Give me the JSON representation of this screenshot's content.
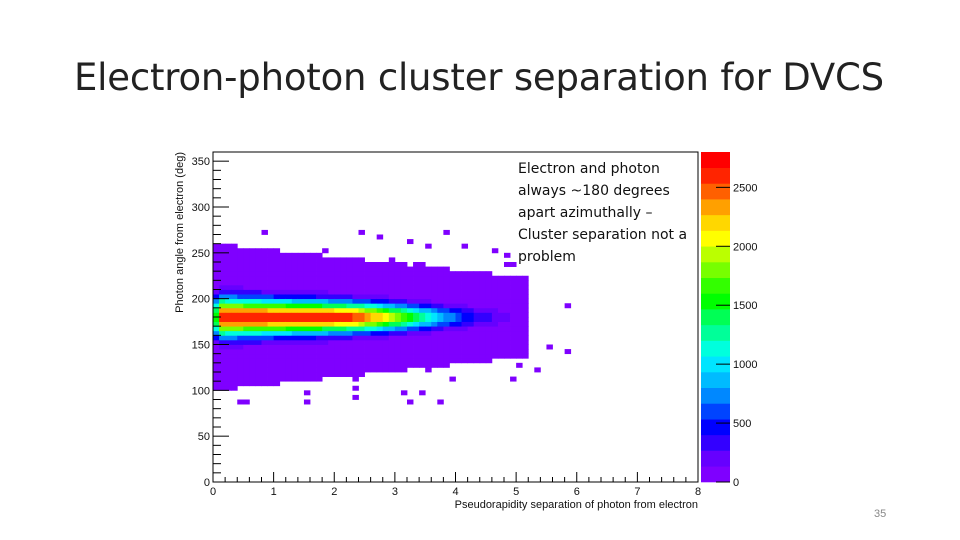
{
  "slide": {
    "title": "Electron-photon cluster separation for DVCS",
    "page_number": "35",
    "annotation_lines": [
      "Electron and photon",
      "always ~180 degrees",
      "apart azimuthally –",
      "Cluster separation not a",
      "problem"
    ]
  },
  "chart_data": {
    "type": "heatmap",
    "title": "",
    "xlabel": "Pseudorapidity separation of photon from electron",
    "ylabel": "Photon angle from electron (deg)",
    "xlim": [
      0,
      8
    ],
    "ylim": [
      0,
      360
    ],
    "x_ticks": [
      "0",
      "1",
      "2",
      "3",
      "4",
      "5",
      "6",
      "7",
      "8"
    ],
    "y_ticks": [
      "0",
      "50",
      "100",
      "150",
      "200",
      "250",
      "300",
      "350"
    ],
    "z_ticks": [
      "0",
      "500",
      "1000",
      "1500",
      "2000",
      "2500"
    ],
    "zlim": [
      0,
      2800
    ],
    "bin_width": [
      0.1,
      5
    ],
    "distribution": {
      "center_deg": 180,
      "peak_value": 2700,
      "peak_x_range": [
        0.1,
        2.0
      ],
      "max_x_extent": 5.2,
      "max_y_extent": [
        100,
        260
      ]
    },
    "colorbar_colors": [
      "#7f00ff",
      "#6600ff",
      "#3300ff",
      "#0000ff",
      "#0044ff",
      "#0088ff",
      "#00bbff",
      "#00e5ff",
      "#00ffdd",
      "#00ff99",
      "#00ff55",
      "#00ff00",
      "#33ff00",
      "#77ff00",
      "#bbff00",
      "#ffff00",
      "#ffd700",
      "#ffa000",
      "#ff6000",
      "#ff2400",
      "#ff0000"
    ]
  }
}
